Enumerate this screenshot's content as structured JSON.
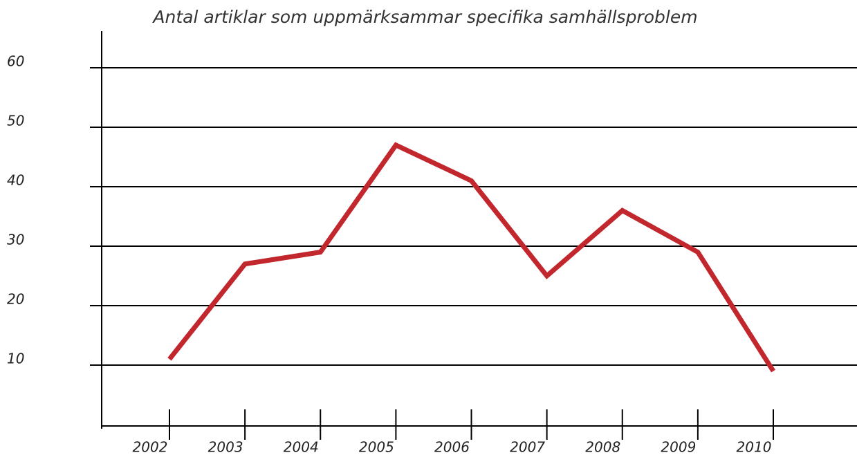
{
  "chart_data": {
    "type": "line",
    "title": "Antal artiklar som uppmärksammar specifika samhällsproblem",
    "categories": [
      "2002",
      "2003",
      "2004",
      "2005",
      "2006",
      "2007",
      "2008",
      "2009",
      "2010"
    ],
    "series": [
      {
        "name": "Antal artiklar",
        "color": "#c1272d",
        "values": [
          11,
          27,
          29,
          47,
          41,
          25,
          36,
          29,
          9
        ]
      }
    ],
    "ylim": [
      0,
      60
    ],
    "yticks": [
      10,
      20,
      30,
      40,
      50,
      60
    ],
    "grid": true
  }
}
